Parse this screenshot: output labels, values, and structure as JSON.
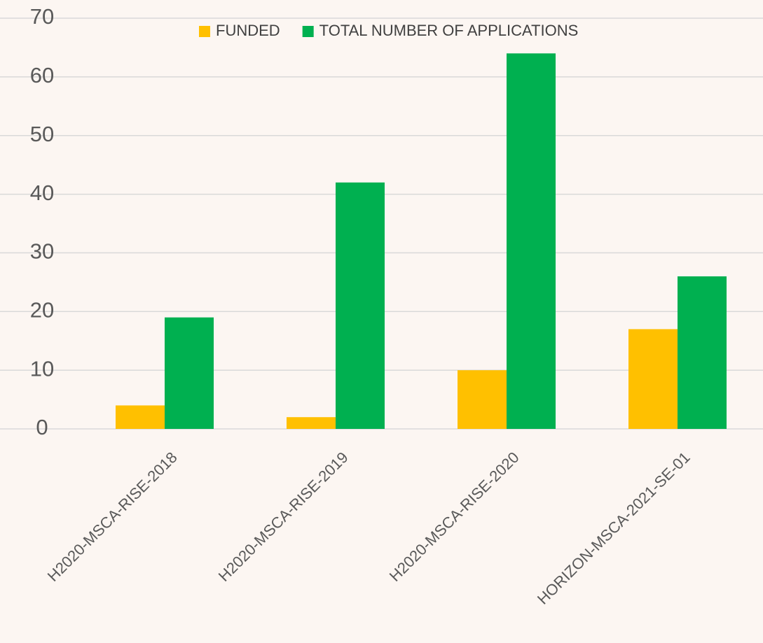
{
  "chart_data": {
    "type": "bar",
    "categories": [
      "H2020-MSCA-RISE-2018",
      "H2020-MSCA-RISE-2019",
      "H2020-MSCA-RISE-2020",
      "HORIZON-MSCA-2021-SE-01"
    ],
    "series": [
      {
        "name": "FUNDED",
        "color": "#ffc000",
        "values": [
          4,
          2,
          10,
          17
        ]
      },
      {
        "name": "TOTAL NUMBER OF APPLICATIONS",
        "color": "#00b050",
        "values": [
          19,
          42,
          64,
          26
        ]
      }
    ],
    "ylim": [
      0,
      70
    ],
    "yticks": [
      0,
      10,
      20,
      30,
      40,
      50,
      60,
      70
    ],
    "grid": true,
    "legend": "top"
  }
}
